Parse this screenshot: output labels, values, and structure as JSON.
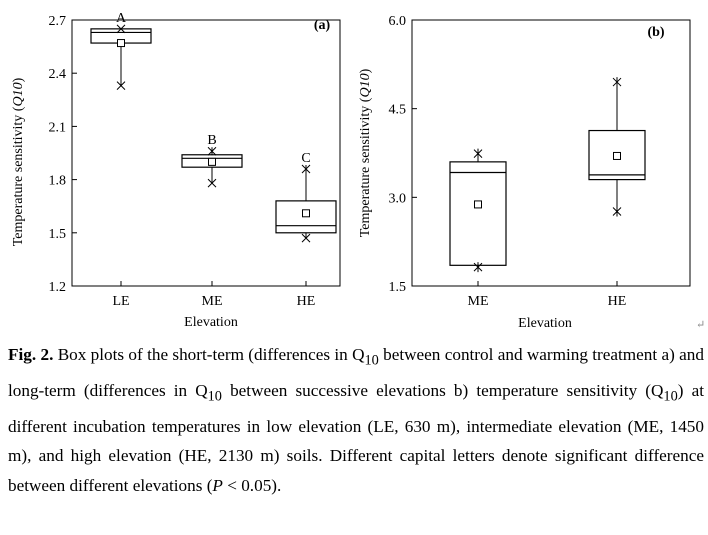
{
  "chart_data": [
    {
      "type": "box",
      "panel_label": "(a)",
      "ylabel": "Temperature sensitivity (Q10)",
      "xlabel": "Elevation",
      "ylim": [
        1.2,
        2.7
      ],
      "yticks": [
        "1.2",
        "1.5",
        "1.8",
        "2.1",
        "2.4",
        "2.7"
      ],
      "categories": [
        "LE",
        "ME",
        "HE"
      ],
      "boxes": [
        {
          "category": "LE",
          "q1": 2.57,
          "median": 2.63,
          "q3": 2.65,
          "mean": 2.57,
          "min": 2.33,
          "max": 2.65,
          "letter": "A"
        },
        {
          "category": "ME",
          "q1": 1.87,
          "median": 1.92,
          "q3": 1.94,
          "mean": 1.9,
          "min": 1.78,
          "max": 1.96,
          "letter": "B"
        },
        {
          "category": "HE",
          "q1": 1.5,
          "median": 1.54,
          "q3": 1.68,
          "mean": 1.61,
          "min": 1.47,
          "max": 1.86,
          "letter": "C"
        }
      ]
    },
    {
      "type": "box",
      "panel_label": "(b)",
      "ylabel": "Temperature sensitivity (Q10)",
      "xlabel": "Elevation",
      "ylim": [
        1.5,
        6.0
      ],
      "yticks": [
        "1.5",
        "3.0",
        "4.5",
        "6.0"
      ],
      "categories": [
        "ME",
        "HE"
      ],
      "boxes": [
        {
          "category": "ME",
          "q1": 1.85,
          "median": 3.42,
          "q3": 3.6,
          "mean": 2.88,
          "min": 1.82,
          "max": 3.74
        },
        {
          "category": "HE",
          "q1": 3.3,
          "median": 3.38,
          "q3": 4.13,
          "mean": 3.7,
          "min": 2.76,
          "max": 4.95
        }
      ]
    }
  ],
  "caption": {
    "fig_label": "Fig. 2.",
    "text_before_sub1": " Box plots of the short-term (differences in Q",
    "sub1": "10",
    "text_mid1": " between control and warming treatment a) and long-term (differences in Q",
    "sub2": "10",
    "text_mid2": " between successive elevations b) temperature sensitivity (Q",
    "sub3": "10",
    "text_after": ") at different incubation temperatures in low elevation (LE, 630 m), intermediate elevation (ME, 1450 m), and high elevation (HE, 2130 m) soils. Different capital letters denote significant difference between different elevations (",
    "p_italic": "P",
    "text_end": " < 0.05)."
  }
}
